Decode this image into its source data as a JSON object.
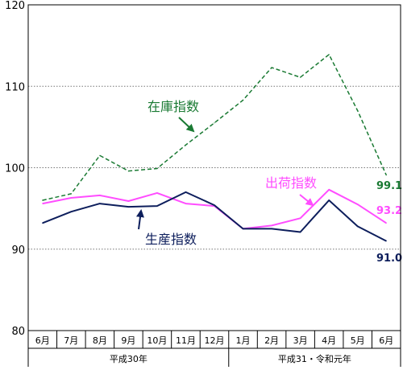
{
  "chart_data": {
    "type": "line",
    "categories": [
      "6月",
      "7月",
      "8月",
      "9月",
      "10月",
      "11月",
      "12月",
      "1月",
      "2月",
      "3月",
      "4月",
      "5月",
      "6月"
    ],
    "year_groups": [
      {
        "label": "平成30年",
        "start": 0,
        "end": 6
      },
      {
        "label": "平成31・令和元年",
        "start": 7,
        "end": 12
      }
    ],
    "ylim": [
      80,
      120
    ],
    "yticks": [
      80,
      90,
      100,
      110,
      120
    ],
    "grid": true,
    "series": [
      {
        "name": "在庫指数",
        "color": "#1a7a33",
        "dash": true,
        "values": [
          96.0,
          96.8,
          101.5,
          99.6,
          99.9,
          102.8,
          105.5,
          108.3,
          112.3,
          111.1,
          113.9,
          107.0,
          99.1
        ],
        "end_label": "99.1"
      },
      {
        "name": "出荷指数",
        "color": "#ff4dff",
        "dash": false,
        "values": [
          95.6,
          96.3,
          96.6,
          95.9,
          96.9,
          95.6,
          95.3,
          92.5,
          92.9,
          93.8,
          97.3,
          95.5,
          93.2
        ],
        "end_label": "93.2"
      },
      {
        "name": "生産指数",
        "color": "#0d1e5c",
        "dash": false,
        "values": [
          93.2,
          94.6,
          95.6,
          95.2,
          95.3,
          97.0,
          95.4,
          92.5,
          92.5,
          92.1,
          96.0,
          92.8,
          91.0
        ],
        "end_label": "91.0"
      }
    ]
  }
}
